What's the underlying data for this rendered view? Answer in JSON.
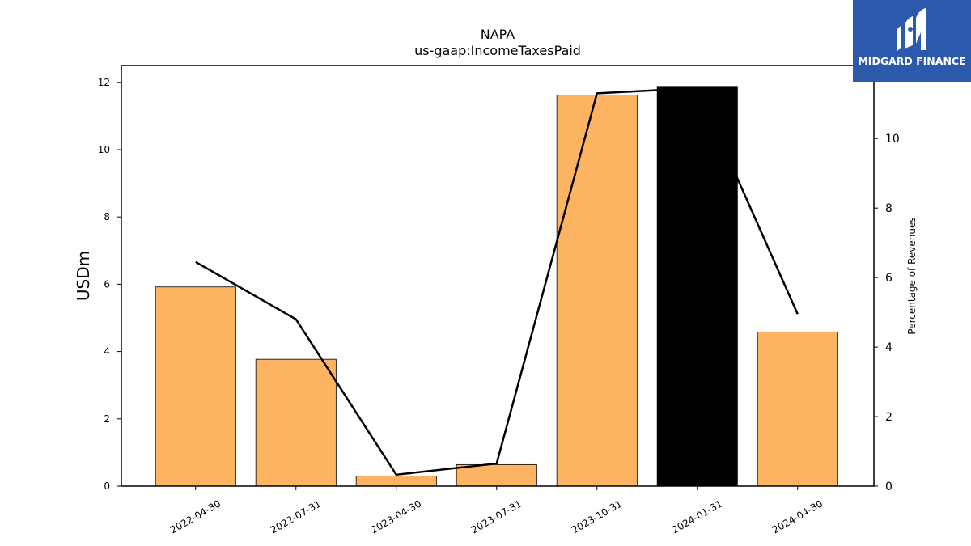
{
  "chart_data": {
    "type": "bar+line",
    "title": "NAPA",
    "subtitle": "us-gaap:IncomeTaxesPaid",
    "ylabel": "USDm",
    "y2label": "Percentage of Revenues",
    "categories": [
      "2022-04-30",
      "2022-07-31",
      "2023-04-30",
      "2023-07-31",
      "2023-10-31",
      "2024-01-31",
      "2024-04-30"
    ],
    "bars": {
      "values": [
        5.92,
        3.77,
        0.3,
        0.64,
        11.62,
        11.88,
        4.58
      ],
      "color": "#fdb462",
      "highlight_index": 5,
      "highlight_color": "#000000"
    },
    "line": {
      "values": [
        6.45,
        4.8,
        0.33,
        0.65,
        11.3,
        11.45,
        4.95
      ],
      "color": "#000000"
    },
    "ylim": [
      0,
      12.5
    ],
    "y2lim": [
      0,
      12.1
    ],
    "yticks": [
      0,
      2,
      4,
      6,
      8,
      10,
      12
    ],
    "y2ticks": [
      0,
      2,
      4,
      6,
      8,
      10
    ]
  },
  "logo": {
    "text": "MIDGARD FINANCE",
    "bg": "#2b5aad"
  }
}
